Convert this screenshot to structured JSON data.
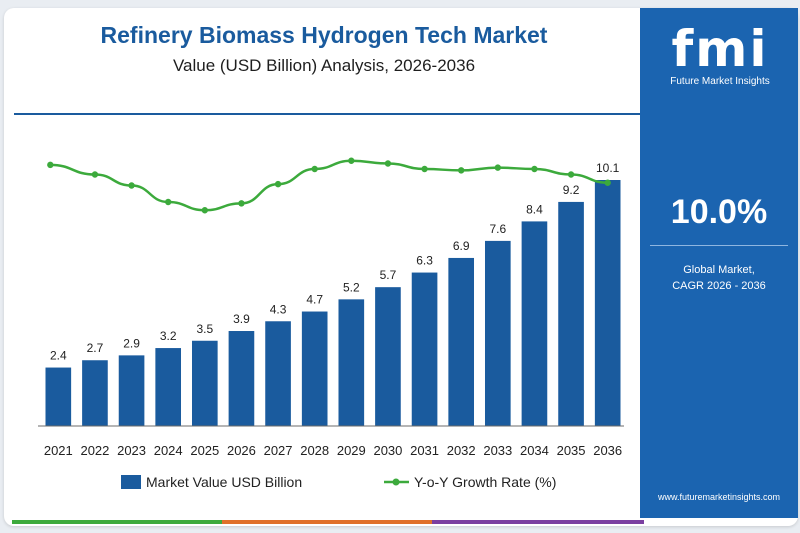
{
  "header": {
    "title": "Refinery Biomass Hydrogen Tech Market",
    "subtitle": "Value (USD Billion) Analysis, 2026-2036"
  },
  "sidebar": {
    "brand": "fmi",
    "brand_name": "Future Market Insights",
    "cagr_value": "10.0%",
    "cagr_label_line1": "Global Market,",
    "cagr_label_line2": "CAGR 2026 - 2036",
    "website": "www.futuremarketinsights.com"
  },
  "colors": {
    "bar": "#1a5b9e",
    "line": "#3caa3c",
    "sidebar": "#1b64b0",
    "title": "#1a5b9e",
    "strip": [
      "#3caa3c",
      "#e0702a",
      "#7b3fa0"
    ]
  },
  "chart_data": {
    "type": "bar",
    "title": "Refinery Biomass Hydrogen Tech Market",
    "subtitle": "Value (USD Billion) Analysis, 2026-2036",
    "categories": [
      "2021",
      "2022",
      "2023",
      "2024",
      "2025",
      "2026",
      "2027",
      "2028",
      "2029",
      "2030",
      "2031",
      "2032",
      "2033",
      "2034",
      "2035",
      "2036"
    ],
    "series": [
      {
        "name": "Market Value USD Billion",
        "type": "bar",
        "values": [
          2.4,
          2.7,
          2.9,
          3.2,
          3.5,
          3.9,
          4.3,
          4.7,
          5.2,
          5.7,
          6.3,
          6.9,
          7.6,
          8.4,
          9.2,
          10.1
        ],
        "labels": [
          "2.4",
          "2.7",
          "2.9",
          "3.2",
          "3.5",
          "3.9",
          "4.3",
          "4.7",
          "5.2",
          "5.7",
          "6.3",
          "6.9",
          "7.6",
          "8.4",
          "9.2",
          "10.1"
        ]
      },
      {
        "name": "Y-o-Y Growth Rate (%)",
        "type": "line",
        "values": [
          11.5,
          10.8,
          10.0,
          8.8,
          8.2,
          8.7,
          10.1,
          11.2,
          11.8,
          11.6,
          11.2,
          11.1,
          11.3,
          11.2,
          10.8,
          10.2
        ]
      }
    ],
    "ylim": [
      0,
      12
    ],
    "line_ylim": [
      0,
      12
    ],
    "grid": false,
    "legend": "bottom"
  }
}
